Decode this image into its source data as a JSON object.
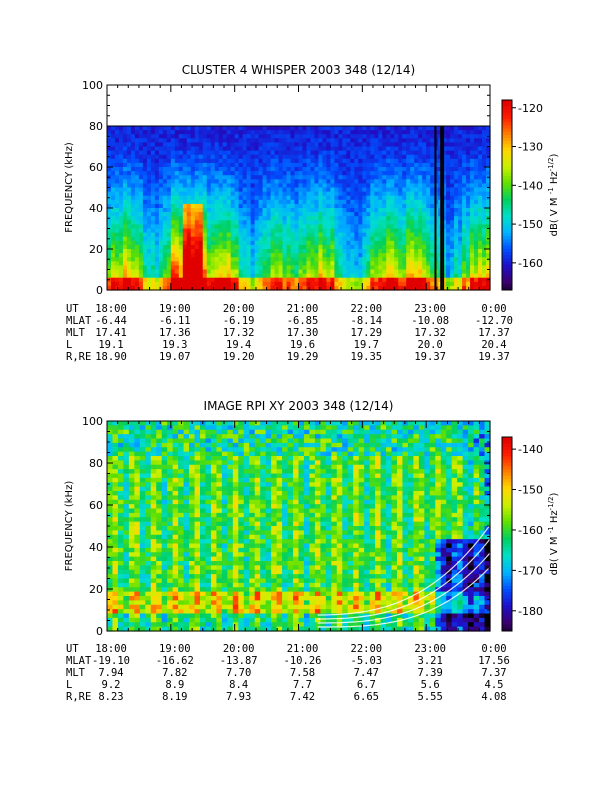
{
  "chart_data": [
    {
      "type": "heatmap",
      "title": "CLUSTER 4 WHISPER 2003 348 (12/14)",
      "ylabel": "FREQUENCY (kHz)",
      "ylim": [
        0,
        100
      ],
      "yticks": [
        "0",
        "20",
        "40",
        "60",
        "80",
        "100"
      ],
      "data_ylim": [
        0,
        80
      ],
      "colorbar": {
        "label": "dB( V M⁻¹ Hz⁻¹ᐟ²)",
        "label_text": "dB( V M",
        "ticks": [
          "-120",
          "-130",
          "-140",
          "-150",
          "-160"
        ],
        "range": [
          -167,
          -118
        ]
      },
      "ephemeris": {
        "rows": [
          {
            "label": "UT",
            "values": [
              "18:00",
              "19:00",
              "20:00",
              "21:00",
              "22:00",
              "23:00",
              "0:00"
            ]
          },
          {
            "label": "MLAT",
            "values": [
              "-6.44",
              "-6.11",
              "-6.19",
              "-6.85",
              "-8.14",
              "-10.08",
              "-12.70"
            ]
          },
          {
            "label": "MLT",
            "values": [
              "17.41",
              "17.36",
              "17.32",
              "17.30",
              "17.29",
              "17.32",
              "17.37"
            ]
          },
          {
            "label": "L",
            "values": [
              "19.1",
              "19.3",
              "19.4",
              "19.6",
              "19.7",
              "20.0",
              "20.4"
            ]
          },
          {
            "label": "R,RE",
            "values": [
              "18.90",
              "19.07",
              "19.20",
              "19.29",
              "19.35",
              "19.37",
              "19.37"
            ]
          }
        ]
      }
    },
    {
      "type": "heatmap",
      "title": "IMAGE RPI XY 2003 348 (12/14)",
      "ylabel": "FREQUENCY (kHz)",
      "ylim": [
        0,
        100
      ],
      "yticks": [
        "0",
        "20",
        "40",
        "60",
        "80",
        "100"
      ],
      "colorbar": {
        "label_text": "dB( V M",
        "ticks": [
          "-140",
          "-150",
          "-160",
          "-170",
          "-180"
        ],
        "range": [
          -185,
          -137
        ]
      },
      "ephemeris": {
        "rows": [
          {
            "label": "UT",
            "values": [
              "18:00",
              "19:00",
              "20:00",
              "21:00",
              "22:00",
              "23:00",
              "0:00"
            ]
          },
          {
            "label": "MLAT",
            "values": [
              "-19.10",
              "-16.62",
              "-13.87",
              "-10.26",
              "-5.03",
              "3.21",
              "17.56"
            ]
          },
          {
            "label": "MLT",
            "values": [
              "7.94",
              "7.82",
              "7.70",
              "7.58",
              "7.47",
              "7.39",
              "7.37"
            ]
          },
          {
            "label": "L",
            "values": [
              "9.2",
              "8.9",
              "8.4",
              "7.7",
              "6.7",
              "5.6",
              "4.5"
            ]
          },
          {
            "label": "R,RE",
            "values": [
              "8.23",
              "8.19",
              "7.93",
              "7.42",
              "6.65",
              "5.55",
              "4.08"
            ]
          }
        ]
      }
    }
  ],
  "colors": {
    "scale": [
      "#000000",
      "#3a0070",
      "#1e10c8",
      "#0050ff",
      "#00b4ff",
      "#00e0c8",
      "#00d060",
      "#60e000",
      "#c8f000",
      "#ffd800",
      "#ff8000",
      "#ff1e00",
      "#e00000"
    ]
  }
}
